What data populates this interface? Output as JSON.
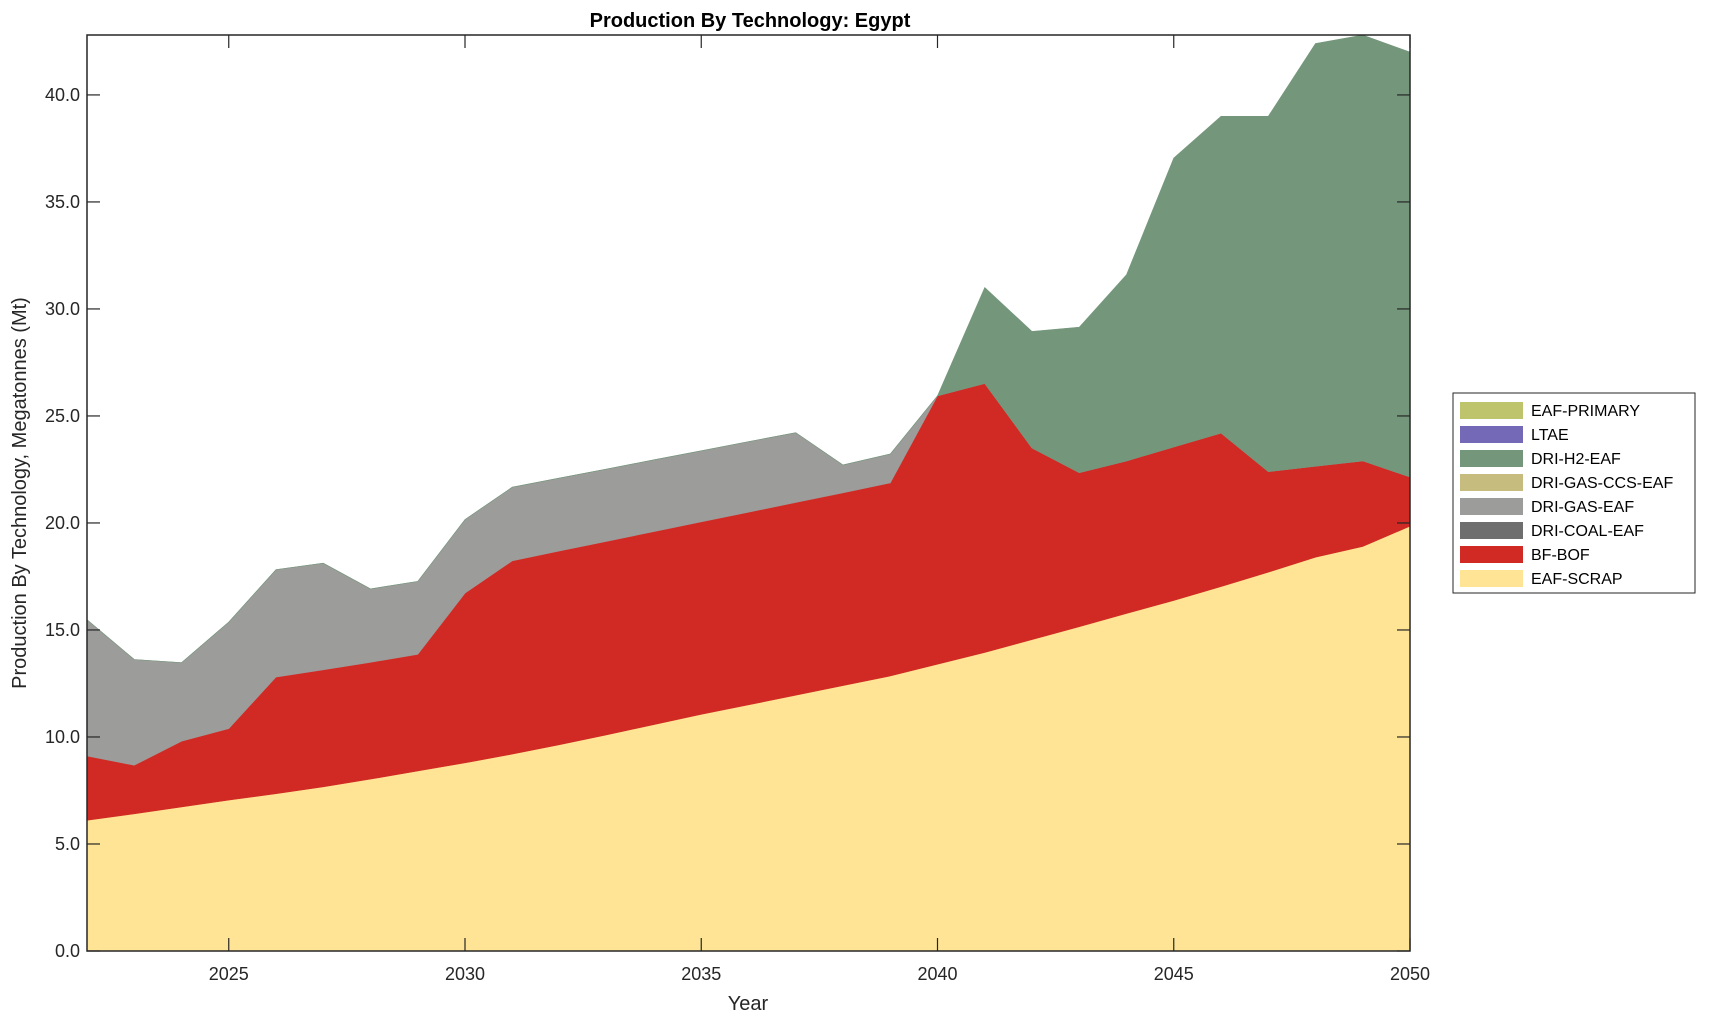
{
  "chart_data": {
    "type": "area",
    "stacked": true,
    "title": "Production By Technology: Egypt",
    "xlabel": "Year",
    "ylabel": "Production By Technology, Megatonnes (Mt)",
    "xlim": [
      2022,
      2050
    ],
    "ylim": [
      0,
      42.8
    ],
    "x_ticks": [
      2025,
      2030,
      2035,
      2040,
      2045,
      2050
    ],
    "x_tick_labels": [
      "2025",
      "2030",
      "2035",
      "2040",
      "2045",
      "2050"
    ],
    "y_ticks": [
      0,
      5,
      10,
      15,
      20,
      25,
      30,
      35,
      40
    ],
    "y_tick_labels": [
      "0.0",
      "5.0",
      "10.0",
      "15.0",
      "20.0",
      "25.0",
      "30.0",
      "35.0",
      "40.0"
    ],
    "grid": false,
    "legend_position": "right",
    "x": [
      2022,
      2023,
      2024,
      2025,
      2026,
      2027,
      2028,
      2029,
      2030,
      2031,
      2032,
      2033,
      2034,
      2035,
      2036,
      2037,
      2038,
      2039,
      2040,
      2041,
      2042,
      2043,
      2044,
      2045,
      2046,
      2047,
      2048,
      2049,
      2050
    ],
    "series": [
      {
        "name": "EAF-SCRAP",
        "color": "#fee494",
        "values": [
          6.11,
          6.41,
          6.73,
          7.05,
          7.35,
          7.67,
          8.03,
          8.41,
          8.79,
          9.2,
          9.64,
          10.1,
          10.58,
          11.06,
          11.5,
          11.95,
          12.4,
          12.85,
          13.4,
          13.95,
          14.55,
          15.15,
          15.77,
          16.38,
          17.03,
          17.7,
          18.4,
          18.9,
          19.85
        ]
      },
      {
        "name": "BF-BOF",
        "color": "#d12a24",
        "values": [
          3.0,
          2.27,
          3.07,
          3.34,
          5.45,
          5.47,
          5.46,
          5.45,
          7.93,
          9.03,
          9.05,
          9.04,
          9.02,
          8.99,
          9.0,
          9.01,
          9.01,
          9.02,
          12.54,
          12.57,
          8.95,
          7.2,
          7.13,
          7.17,
          7.17,
          4.7,
          4.25,
          4.0,
          2.3
        ]
      },
      {
        "name": "DRI-COAL-EAF",
        "color": "#6e6e6e",
        "values": [
          0,
          0,
          0,
          0,
          0,
          0,
          0,
          0,
          0,
          0,
          0,
          0,
          0,
          0,
          0,
          0,
          0,
          0,
          0,
          0,
          0,
          0,
          0,
          0,
          0,
          0,
          0,
          0,
          0
        ]
      },
      {
        "name": "DRI-GAS-EAF",
        "color": "#9c9c9a",
        "values": [
          6.37,
          4.94,
          3.67,
          4.98,
          5.02,
          4.98,
          3.43,
          3.41,
          3.44,
          3.44,
          3.41,
          3.38,
          3.35,
          3.32,
          3.3,
          3.26,
          1.3,
          1.35,
          0,
          0,
          0,
          0,
          0,
          0,
          0,
          0,
          0,
          0,
          0
        ]
      },
      {
        "name": "DRI-GAS-CCS-EAF",
        "color": "#c6bc7d",
        "values": [
          0,
          0,
          0,
          0,
          0,
          0,
          0,
          0,
          0,
          0,
          0,
          0,
          0,
          0,
          0,
          0,
          0,
          0,
          0,
          0,
          0,
          0,
          0,
          0,
          0,
          0,
          0,
          0,
          0
        ]
      },
      {
        "name": "DRI-H2-EAF",
        "color": "#74977c",
        "values": [
          0,
          0,
          0,
          0,
          0,
          0,
          0,
          0,
          0,
          0,
          0,
          0,
          0,
          0,
          0,
          0,
          0,
          0,
          0,
          4.48,
          5.45,
          6.8,
          8.7,
          13.5,
          14.8,
          16.6,
          19.75,
          19.9,
          19.85
        ]
      },
      {
        "name": "LTAE",
        "color": "#7369b6",
        "values": [
          0,
          0,
          0,
          0,
          0,
          0,
          0,
          0,
          0,
          0,
          0,
          0,
          0,
          0,
          0,
          0,
          0,
          0,
          0,
          0,
          0,
          0,
          0,
          0,
          0,
          0,
          0,
          0,
          0
        ]
      },
      {
        "name": "EAF-PRIMARY",
        "color": "#bdc46b",
        "values": [
          0,
          0,
          0,
          0,
          0,
          0,
          0,
          0,
          0,
          0,
          0,
          0,
          0,
          0,
          0,
          0,
          0,
          0,
          0,
          0,
          0,
          0,
          0,
          0,
          0,
          0,
          0,
          0,
          0
        ]
      }
    ],
    "legend": [
      {
        "label": "EAF-PRIMARY",
        "color": "#bdc46b"
      },
      {
        "label": "LTAE",
        "color": "#7369b6"
      },
      {
        "label": "DRI-H2-EAF",
        "color": "#74977c"
      },
      {
        "label": "DRI-GAS-CCS-EAF",
        "color": "#c6bc7d"
      },
      {
        "label": "DRI-GAS-EAF",
        "color": "#9c9c9a"
      },
      {
        "label": "DRI-COAL-EAF",
        "color": "#6e6e6e"
      },
      {
        "label": "BF-BOF",
        "color": "#d12a24"
      },
      {
        "label": "EAF-SCRAP",
        "color": "#fee494"
      }
    ]
  }
}
